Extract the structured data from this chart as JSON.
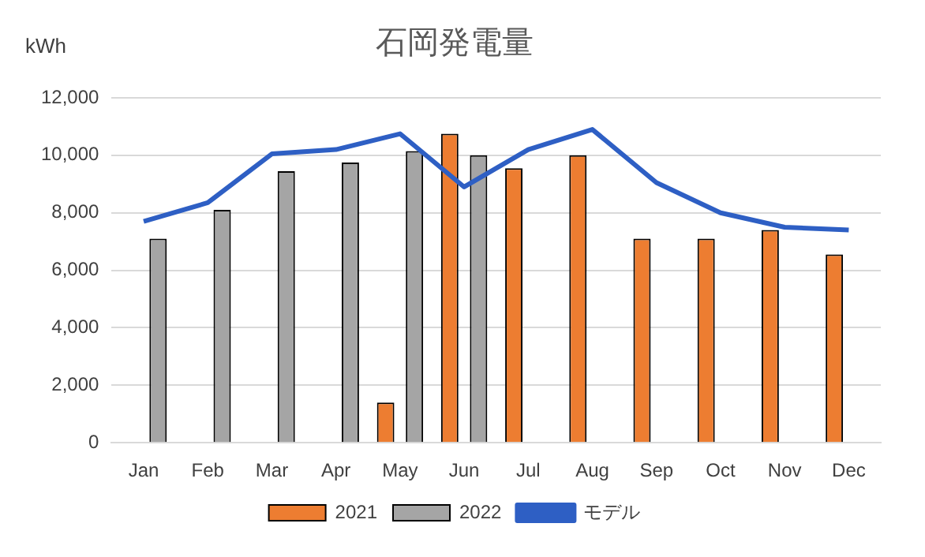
{
  "chart_data": {
    "type": "bar",
    "title": "石岡発電量",
    "ylabel": "kWh",
    "categories": [
      "Jan",
      "Feb",
      "Mar",
      "Apr",
      "May",
      "Jun",
      "Jul",
      "Aug",
      "Sep",
      "Oct",
      "Nov",
      "Dec"
    ],
    "series": [
      {
        "name": "2021",
        "color": "#ed7d31",
        "values": [
          null,
          null,
          null,
          null,
          1400,
          10750,
          9550,
          10000,
          7100,
          7100,
          7400,
          6550
        ]
      },
      {
        "name": "2022",
        "color": "#a5a5a5",
        "values": [
          7100,
          8100,
          9450,
          9750,
          10150,
          10000,
          null,
          null,
          null,
          null,
          null,
          null
        ]
      },
      {
        "name": "モデル",
        "type": "line",
        "color": "#2e5fc4",
        "values": [
          7700,
          8350,
          10050,
          10200,
          10750,
          8900,
          10200,
          10900,
          9050,
          8000,
          7500,
          7400
        ]
      }
    ],
    "ylim": [
      0,
      12000
    ],
    "yticks": [
      0,
      {
        "value": 2000,
        "label": "2,000"
      },
      {
        "value": 4000,
        "label": "4,000"
      },
      {
        "value": 6000,
        "label": "6,000"
      },
      {
        "value": 8000,
        "label": "8,000"
      },
      {
        "value": 10000,
        "label": "10,000"
      },
      {
        "value": 12000,
        "label": "12,000"
      }
    ],
    "grid": "y",
    "legend": "bottom",
    "marker": "none"
  }
}
